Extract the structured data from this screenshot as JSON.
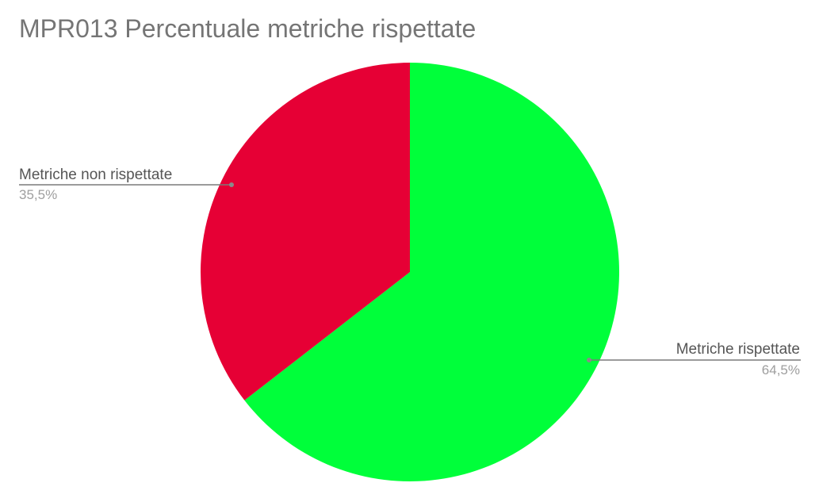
{
  "chart_data": {
    "type": "pie",
    "title": "MPR013 Percentuale metriche rispettate",
    "slices": [
      {
        "label": "Metriche rispettate",
        "value": 64.5,
        "value_label": "64,5%",
        "color": "#00ff3a"
      },
      {
        "label": "Metriche non rispettate",
        "value": 35.5,
        "value_label": "35,5%",
        "color": "#e60035"
      }
    ],
    "start_angle": "12 o'clock",
    "direction": "clockwise",
    "label_style": "outside with leader lines",
    "legend": "none"
  }
}
